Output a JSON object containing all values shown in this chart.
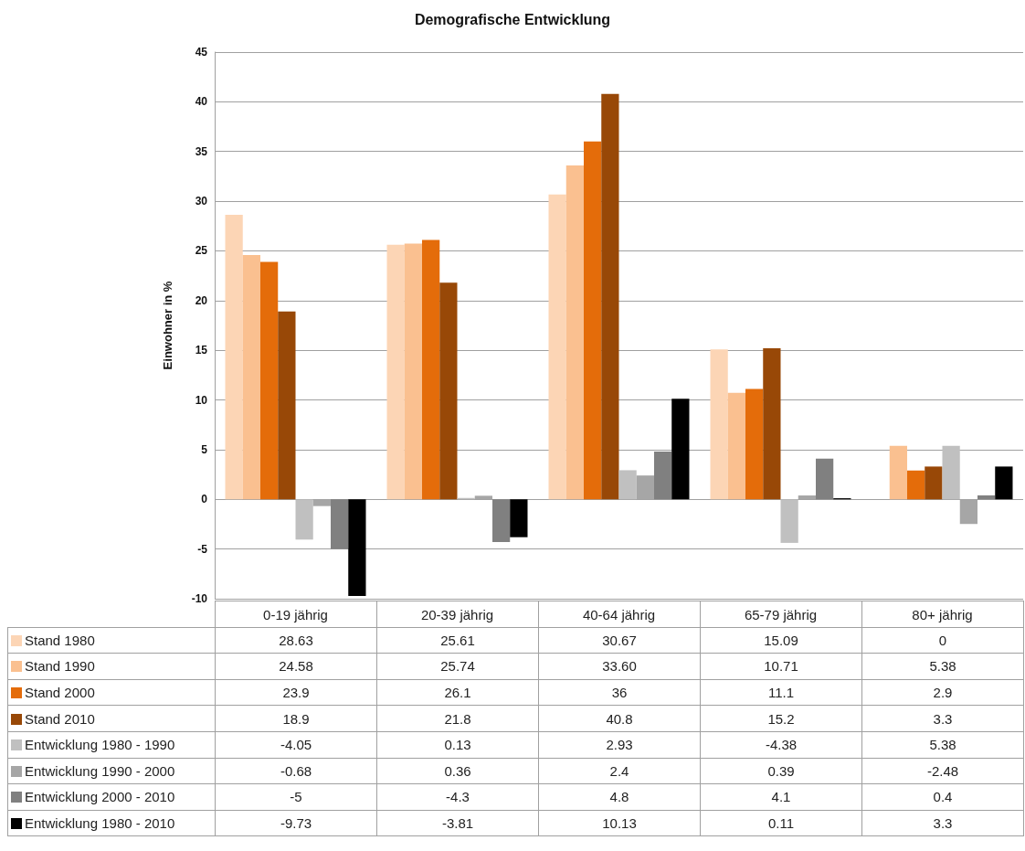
{
  "chart_data": {
    "type": "bar",
    "title": "Demografische Entwicklung",
    "ylabel": "Einwohner in %",
    "categories": [
      "0-19 jährig",
      "20-39 jährig",
      "40-64 jährig",
      "65-79 jährig",
      "80+ jährig"
    ],
    "ylim": [
      -10,
      45
    ],
    "yticks": [
      -10,
      -5,
      0,
      5,
      10,
      15,
      20,
      25,
      30,
      35,
      40,
      45
    ],
    "grid": "y",
    "legend": "bottom",
    "series": [
      {
        "name": "Stand 1980",
        "color": "#fcd5b5",
        "values": [
          28.63,
          25.61,
          30.67,
          15.09,
          0
        ],
        "value_labels": [
          "28.63",
          "25.61",
          "30.67",
          "15.09",
          "0"
        ]
      },
      {
        "name": "Stand 1990",
        "color": "#fac090",
        "values": [
          24.58,
          25.74,
          33.6,
          10.71,
          5.38
        ],
        "value_labels": [
          "24.58",
          "25.74",
          "33.60",
          "10.71",
          "5.38"
        ]
      },
      {
        "name": "Stand 2000",
        "color": "#e46c0a",
        "values": [
          23.9,
          26.1,
          36,
          11.1,
          2.9
        ],
        "value_labels": [
          "23.9",
          "26.1",
          "36",
          "11.1",
          "2.9"
        ]
      },
      {
        "name": "Stand 2010",
        "color": "#984807",
        "values": [
          18.9,
          21.8,
          40.8,
          15.2,
          3.3
        ],
        "value_labels": [
          "18.9",
          "21.8",
          "40.8",
          "15.2",
          "3.3"
        ]
      },
      {
        "name": "Entwicklung 1980 - 1990",
        "color": "#c0c0c0",
        "values": [
          -4.05,
          0.13,
          2.93,
          -4.38,
          5.38
        ],
        "value_labels": [
          "-4.05",
          "0.13",
          "2.93",
          "-4.38",
          "5.38"
        ]
      },
      {
        "name": "Entwicklung 1990 - 2000",
        "color": "#a6a6a6",
        "values": [
          -0.68,
          0.36,
          2.4,
          0.39,
          -2.48
        ],
        "value_labels": [
          "-0.68",
          "0.36",
          "2.4",
          "0.39",
          "-2.48"
        ]
      },
      {
        "name": "Entwicklung 2000 - 2010",
        "color": "#808080",
        "values": [
          -5,
          -4.3,
          4.8,
          4.1,
          0.4
        ],
        "value_labels": [
          "-5",
          "-4.3",
          "4.8",
          "4.1",
          "0.4"
        ]
      },
      {
        "name": "Entwicklung 1980 - 2010",
        "color": "#000000",
        "values": [
          -9.73,
          -3.81,
          10.13,
          0.11,
          3.3
        ],
        "value_labels": [
          "-9.73",
          "-3.81",
          "10.13",
          "0.11",
          "3.3"
        ]
      }
    ]
  }
}
